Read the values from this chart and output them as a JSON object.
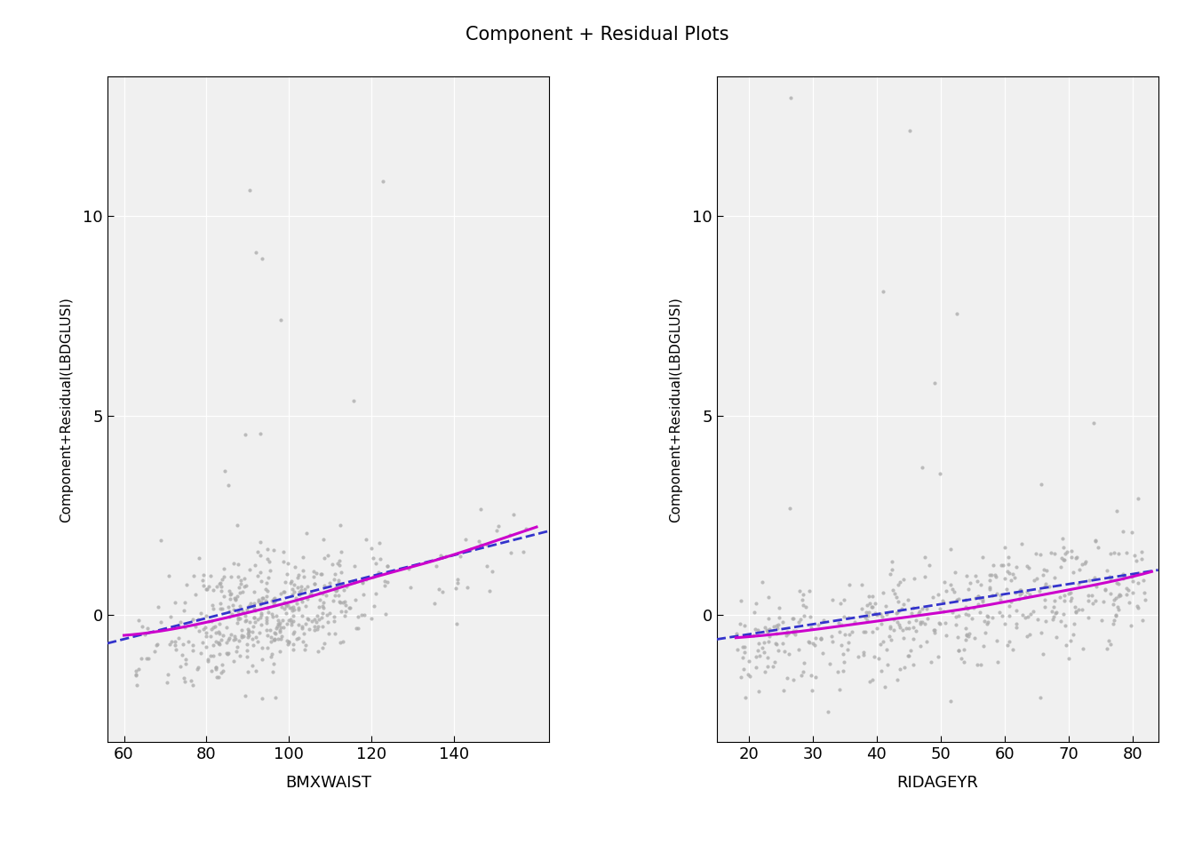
{
  "title": "Component + Residual Plots",
  "title_fontsize": 15,
  "background_color": "#ffffff",
  "plot_bg_color": "#f0f0f0",
  "grid_color": "#ffffff",
  "point_color": "#aaaaaa",
  "point_size": 9,
  "point_alpha": 0.75,
  "subplot1": {
    "xlabel": "BMXWAIST",
    "ylabel": "Component+Residual(LBDGLUSI)",
    "xlim": [
      56,
      163
    ],
    "ylim": [
      -3.2,
      13.5
    ],
    "xticks": [
      60,
      80,
      100,
      120,
      140
    ],
    "yticks": [
      0,
      5,
      10
    ],
    "linear_line": {
      "x0": 56,
      "x1": 163,
      "y0": -0.72,
      "y1": 2.1,
      "color": "#3333cc",
      "lw": 2.0,
      "ls": "--"
    },
    "loess_pts_x": [
      60,
      75,
      90,
      105,
      120,
      135,
      150,
      160
    ],
    "loess_pts_y": [
      -0.52,
      -0.3,
      0.05,
      0.45,
      0.92,
      1.35,
      1.85,
      2.2
    ],
    "loess_color": "#cc00cc",
    "loess_lw": 2.2,
    "x_center": 95,
    "x_std": 13,
    "n_main": 430,
    "n_sparse": 80,
    "slope": 0.03,
    "noise_std": 0.72,
    "outlier_prob": 0.04,
    "outlier_scale": 3.5
  },
  "subplot2": {
    "xlabel": "RIDAGEYR",
    "ylabel": "Component+Residual(LBDGLUSI)",
    "xlim": [
      15,
      84
    ],
    "ylim": [
      -3.2,
      13.5
    ],
    "xticks": [
      20,
      30,
      40,
      50,
      60,
      70,
      80
    ],
    "yticks": [
      0,
      5,
      10
    ],
    "linear_line": {
      "x0": 15,
      "x1": 84,
      "y0": -0.62,
      "y1": 1.12,
      "color": "#3333cc",
      "lw": 2.0,
      "ls": "--"
    },
    "loess_pts_x": [
      18,
      30,
      42,
      54,
      66,
      78,
      83
    ],
    "loess_pts_y": [
      -0.58,
      -0.38,
      -0.12,
      0.15,
      0.5,
      0.88,
      1.08
    ],
    "loess_color": "#cc00cc",
    "loess_lw": 2.2,
    "x_min": 18,
    "x_max": 82,
    "n_points": 500,
    "slope": 0.025,
    "x_center": 50,
    "noise_std": 0.72,
    "outlier_prob": 0.04,
    "outlier_scale": 3.5
  }
}
